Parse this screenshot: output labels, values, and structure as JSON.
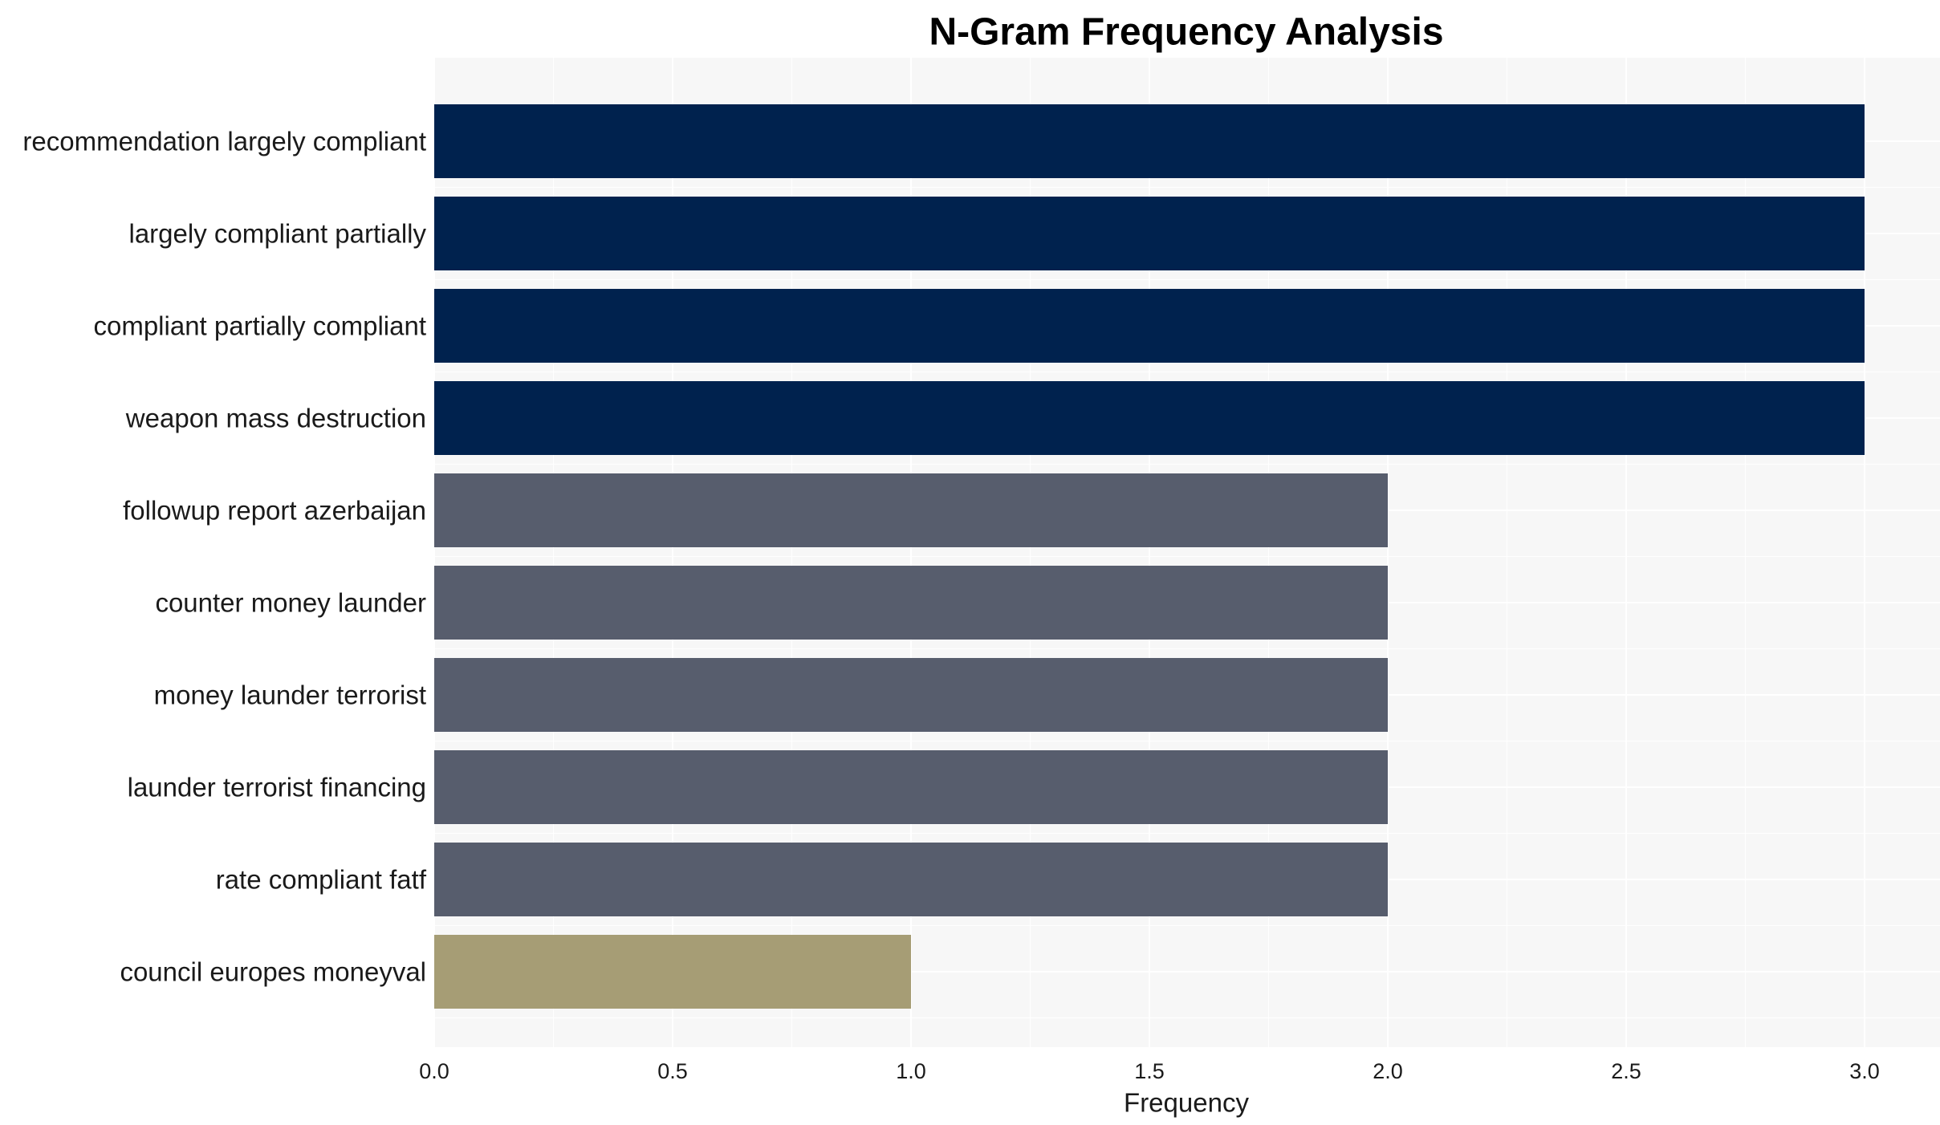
{
  "chart_data": {
    "type": "bar",
    "orientation": "horizontal",
    "title": "N-Gram Frequency Analysis",
    "xlabel": "Frequency",
    "ylabel": "",
    "xlim": [
      0,
      3.15
    ],
    "xticks": [
      0.0,
      0.5,
      1.0,
      1.5,
      2.0,
      2.5,
      3.0
    ],
    "xtick_labels": [
      "0.0",
      "0.5",
      "1.0",
      "1.5",
      "2.0",
      "2.5",
      "3.0"
    ],
    "grid": true,
    "categories": [
      "recommendation largely compliant",
      "largely compliant partially",
      "compliant partially compliant",
      "weapon mass destruction",
      "followup report azerbaijan",
      "counter money launder",
      "money launder terrorist",
      "launder terrorist financing",
      "rate compliant fatf",
      "council europes moneyval"
    ],
    "values": [
      3,
      3,
      3,
      3,
      2,
      2,
      2,
      2,
      2,
      1
    ],
    "colors": [
      "#00224e",
      "#00224e",
      "#00224e",
      "#00224e",
      "#575d6d",
      "#575d6d",
      "#575d6d",
      "#575d6d",
      "#575d6d",
      "#a69d75"
    ],
    "plot_background": "#f7f7f7",
    "grid_color": "#ffffff"
  }
}
